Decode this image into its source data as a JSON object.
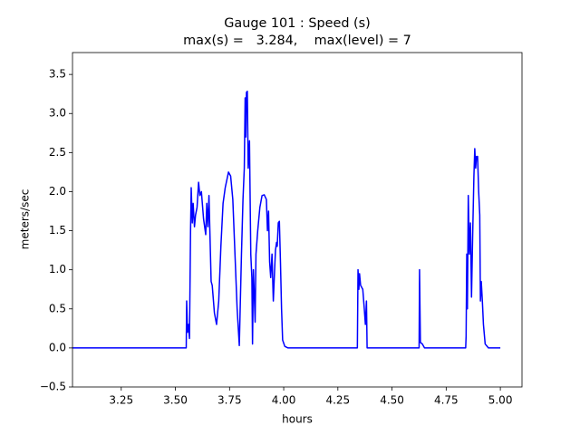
{
  "chart_data": {
    "type": "line",
    "title": "Gauge 101 : Speed (s)",
    "subtitle": "max(s) =   3.284,    max(level) = 7",
    "xlabel": "hours",
    "ylabel": "meters/sec",
    "color": "#0000ff",
    "xlim": [
      3.025,
      5.1
    ],
    "ylim": [
      -0.5,
      3.78
    ],
    "xticks": [
      3.25,
      {
        "value": 3.5,
        "label": "3.50"
      },
      3.75,
      {
        "value": 4,
        "label": "4.00"
      },
      4.25,
      {
        "value": 4.5,
        "label": "4.50"
      },
      4.75,
      {
        "value": 5,
        "label": "5.00"
      }
    ],
    "yticks": [
      {
        "value": -0.5,
        "label": "−0.5"
      },
      {
        "value": 0,
        "label": "0.0"
      },
      0.5,
      {
        "value": 1,
        "label": "1.0"
      },
      1.5,
      {
        "value": 2,
        "label": "2.0"
      },
      2.5,
      {
        "value": 3,
        "label": "3.0"
      },
      3.5
    ],
    "x": [
      3.025,
      3.55,
      3.552,
      3.556,
      3.56,
      3.565,
      3.57,
      3.573,
      3.578,
      3.582,
      3.588,
      3.593,
      3.6,
      3.607,
      3.613,
      3.62,
      3.63,
      3.64,
      3.645,
      3.65,
      3.655,
      3.66,
      3.665,
      3.67,
      3.68,
      3.69,
      3.7,
      3.71,
      3.72,
      3.73,
      3.745,
      3.755,
      3.765,
      3.775,
      3.785,
      3.795,
      3.805,
      3.812,
      3.818,
      3.822,
      3.825,
      3.828,
      3.832,
      3.836,
      3.842,
      3.848,
      3.853,
      3.856,
      3.86,
      3.864,
      3.868,
      3.872,
      3.88,
      3.89,
      3.9,
      3.91,
      3.92,
      3.925,
      3.93,
      3.935,
      3.94,
      3.946,
      3.952,
      3.958,
      3.962,
      3.967,
      3.97,
      3.975,
      3.98,
      3.985,
      3.99,
      3.995,
      4.005,
      4.02,
      4.34,
      4.343,
      4.347,
      4.35,
      4.355,
      4.365,
      4.372,
      4.377,
      4.382,
      4.385,
      4.625,
      4.627,
      4.631,
      4.64,
      4.65,
      4.84,
      4.842,
      4.845,
      4.848,
      4.852,
      4.857,
      4.862,
      4.867,
      4.872,
      4.878,
      4.882,
      4.886,
      4.89,
      4.895,
      4.9,
      4.905,
      4.908,
      4.912,
      4.917,
      4.922,
      4.93,
      4.945,
      5.0
    ],
    "values": [
      0,
      0,
      0.6,
      0.2,
      0.3,
      0.12,
      1.5,
      2.05,
      1.6,
      1.85,
      1.55,
      1.7,
      1.8,
      2.12,
      1.95,
      2.0,
      1.65,
      1.45,
      1.85,
      1.55,
      1.95,
      1.4,
      0.85,
      0.8,
      0.45,
      0.3,
      0.6,
      1.3,
      1.85,
      2.05,
      2.25,
      2.2,
      1.9,
      1.2,
      0.5,
      0.03,
      1.2,
      1.9,
      2.3,
      3.2,
      2.7,
      3.27,
      3.284,
      2.3,
      2.65,
      1.2,
      0.9,
      0.05,
      1.0,
      0.7,
      0.33,
      1.2,
      1.5,
      1.8,
      1.95,
      1.96,
      1.9,
      1.5,
      1.75,
      1.1,
      0.9,
      1.2,
      0.6,
      1.0,
      1.25,
      1.35,
      1.3,
      1.6,
      1.62,
      1.1,
      0.5,
      0.1,
      0.02,
      0,
      0,
      1.0,
      0.75,
      0.95,
      0.8,
      0.75,
      0.5,
      0.3,
      0.6,
      0,
      0,
      1.0,
      0.07,
      0.05,
      0,
      0,
      0.15,
      1.2,
      0.5,
      1.95,
      1.2,
      1.6,
      0.65,
      1.4,
      2.2,
      2.55,
      2.3,
      2.45,
      2.45,
      2.0,
      1.7,
      0.6,
      0.85,
      0.6,
      0.3,
      0.05,
      0,
      0
    ]
  }
}
